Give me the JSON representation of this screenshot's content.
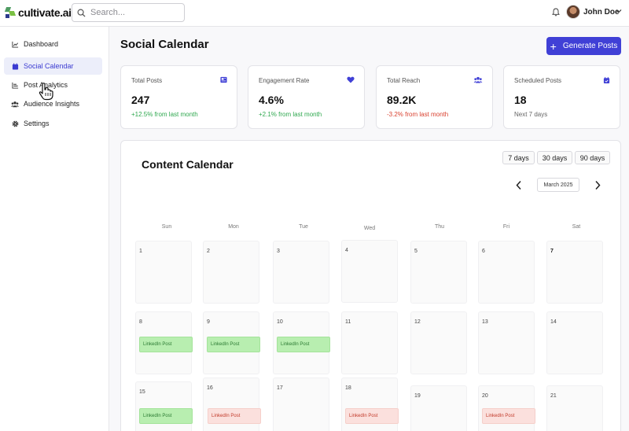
{
  "brand": {
    "name": "cultivate.ai"
  },
  "search": {
    "placeholder": "Search..."
  },
  "user": {
    "name": "John Doe"
  },
  "sidebar": {
    "items": [
      {
        "label": "Dashboard",
        "icon": "chart-line-icon",
        "active": false
      },
      {
        "label": "Social Calendar",
        "icon": "calendar-icon",
        "active": true
      },
      {
        "label": "Post Analytics",
        "icon": "bar-chart-icon",
        "active": false
      },
      {
        "label": "Audience Insights",
        "icon": "users-icon",
        "active": false
      },
      {
        "label": "Settings",
        "icon": "gear-icon",
        "active": false
      }
    ]
  },
  "page": {
    "title": "Social Calendar",
    "generate_label": "Generate Posts"
  },
  "stats": [
    {
      "label": "Total Posts",
      "value": "247",
      "sub": "+12.5% from last month",
      "tone": "pos",
      "icon": "newspaper-icon"
    },
    {
      "label": "Engagement Rate",
      "value": "4.6%",
      "sub": "+2.1% from last month",
      "tone": "pos",
      "icon": "heart-icon"
    },
    {
      "label": "Total Reach",
      "value": "89.2K",
      "sub": "-3.2% from last month",
      "tone": "neg",
      "icon": "users-icon"
    },
    {
      "label": "Scheduled Posts",
      "value": "18",
      "sub": "Next 7 days",
      "tone": "muted",
      "icon": "calendar-check-icon"
    }
  ],
  "calendar": {
    "title": "Content Calendar",
    "ranges": [
      "7 days",
      "30 days",
      "90 days"
    ],
    "month": "March 2025",
    "weekdays": [
      "Sun",
      "Mon",
      "Tue",
      "Wed",
      "Thu",
      "Fri",
      "Sat"
    ],
    "weeks": [
      [
        {
          "day": "1"
        },
        {
          "day": "2"
        },
        {
          "day": "3"
        },
        {
          "day": "4"
        },
        {
          "day": "5"
        },
        {
          "day": "6"
        },
        {
          "day": "7"
        }
      ],
      [
        {
          "day": "8",
          "post": "LinkedIn Post",
          "status": "green"
        },
        {
          "day": "9",
          "post": "LinkedIn Post",
          "status": "green"
        },
        {
          "day": "10",
          "post": "LinkedIn Post",
          "status": "green"
        },
        {
          "day": "11"
        },
        {
          "day": "12"
        },
        {
          "day": "13"
        },
        {
          "day": "14"
        }
      ],
      [
        {
          "day": "15",
          "post": "LinkedIn Post",
          "status": "green"
        },
        {
          "day": "16",
          "post": "LinkedIn Post",
          "status": "red"
        },
        {
          "day": "17"
        },
        {
          "day": "18",
          "post": "LinkedIn Post",
          "status": "red"
        },
        {
          "day": "19"
        },
        {
          "day": "20",
          "post": "LinkedIn Post",
          "status": "red"
        },
        {
          "day": "21"
        }
      ]
    ]
  },
  "colors": {
    "accent": "#4040d6",
    "positive": "#2fa84f",
    "negative": "#d9412f"
  }
}
